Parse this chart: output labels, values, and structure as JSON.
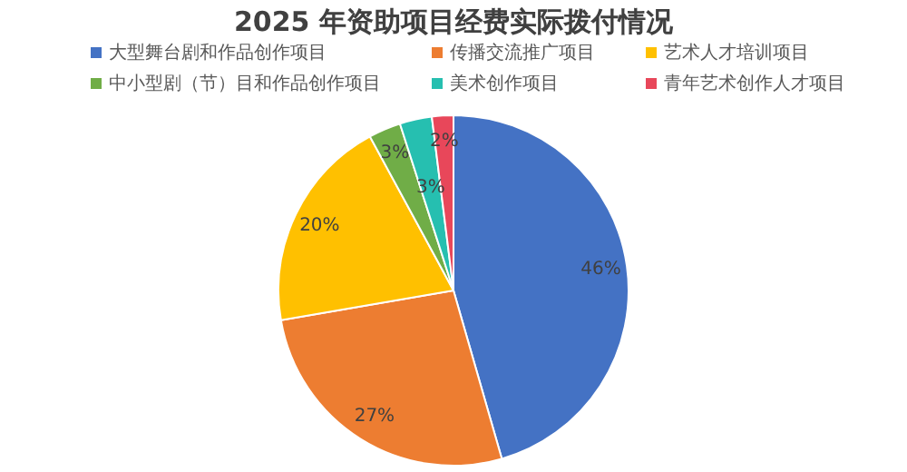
{
  "chart_data": {
    "type": "pie",
    "title": "2025 年资助项目经费实际拨付情况",
    "categories": [
      "大型舞台剧和作品创作项目",
      "传播交流推广项目",
      "艺术人才培训项目",
      "中小型剧（节）目和作品创作项目",
      "美术创作项目",
      "青年艺术创作人才项目"
    ],
    "values": [
      46,
      27,
      20,
      3,
      3,
      2
    ],
    "value_labels": [
      "46%",
      "27%",
      "20%",
      "3%",
      "3%",
      "2%"
    ],
    "colors": [
      "#4472c4",
      "#ed7d31",
      "#ffc000",
      "#70ad47",
      "#26bfb0",
      "#e8475a"
    ],
    "legend": "top"
  }
}
